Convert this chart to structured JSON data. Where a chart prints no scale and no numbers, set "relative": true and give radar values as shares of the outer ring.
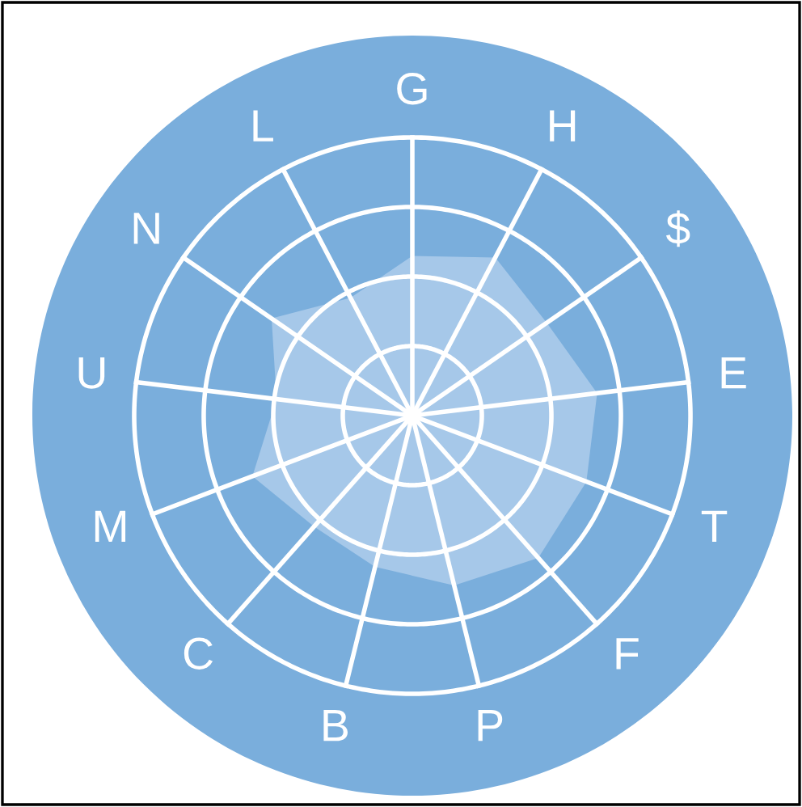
{
  "chart_data": {
    "type": "radar",
    "relative": true,
    "grid": true,
    "categories": [
      "G",
      "H",
      "$",
      "E",
      "T",
      "F",
      "P",
      "B",
      "C",
      "M",
      "U",
      "N",
      "L"
    ],
    "series": [
      {
        "color": "#a6c8e9",
        "values": [
          0.42,
          0.47,
          0.43,
          0.49,
          0.49,
          0.5,
          0.46,
          0.41,
          0.39,
          0.45,
          0.36,
          0.45,
          0.35
        ]
      }
    ]
  }
}
